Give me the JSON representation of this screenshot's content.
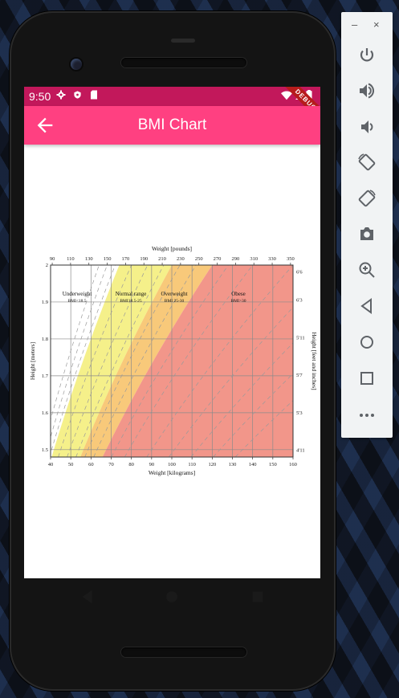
{
  "status_bar": {
    "time": "9:50",
    "debug_label": "DEBUG"
  },
  "app_bar": {
    "title": "BMI Chart",
    "back_icon": "arrow-back-icon"
  },
  "emulator_panel": {
    "minimize_label": "–",
    "close_label": "×",
    "buttons": [
      "power-icon",
      "volume-up-icon",
      "volume-down-icon",
      "rotate-left-icon",
      "rotate-right-icon",
      "camera-icon",
      "zoom-icon",
      "back-icon",
      "home-icon",
      "overview-icon",
      "more-icon"
    ]
  },
  "colors": {
    "status_bar": "#c2185b",
    "app_bar": "#ff4081",
    "underweight": "#ffffff",
    "normal": "#f5f08a",
    "overweight": "#f8c97a",
    "obese": "#f2968a"
  },
  "chart_data": {
    "type": "area",
    "title": "",
    "top_axis_label": "Weight [pounds]",
    "xlabel": "Weight [kilograms]",
    "ylabel": "Height [meters]",
    "right_axis_label": "Height [feet and inches]",
    "xlim": [
      40,
      160
    ],
    "ylim": [
      1.48,
      2.0
    ],
    "x_ticks": [
      "40",
      "50",
      "60",
      "70",
      "80",
      "90",
      "100",
      "110",
      "120",
      "130",
      "140",
      "150",
      "160"
    ],
    "y_ticks": [
      "1.5",
      "1.6",
      "1.7",
      "1.8",
      "1.9",
      "2"
    ],
    "top_ticks": [
      "90",
      "110",
      "130",
      "150",
      "170",
      "190",
      "210",
      "230",
      "250",
      "270",
      "290",
      "310",
      "330",
      "350"
    ],
    "right_ticks": [
      "4'11",
      "5'3",
      "5'7",
      "5'11",
      "6'3",
      "6'6"
    ],
    "regions": [
      {
        "name": "Underweight",
        "range": "BMI<18.5",
        "bmi_min": 0,
        "bmi_max": 18.5
      },
      {
        "name": "Normal range",
        "range": "BMI18.5-25",
        "bmi_min": 18.5,
        "bmi_max": 25
      },
      {
        "name": "Overweight",
        "range": "BMI 25-30",
        "bmi_min": 25,
        "bmi_max": 30
      },
      {
        "name": "Obese",
        "range": "BMI>30",
        "bmi_min": 30,
        "bmi_max": 100
      }
    ],
    "dashed_bmi_lines": [
      16,
      17,
      18,
      20,
      22,
      24,
      26,
      28,
      32,
      35,
      40,
      45,
      50,
      55,
      60
    ]
  }
}
